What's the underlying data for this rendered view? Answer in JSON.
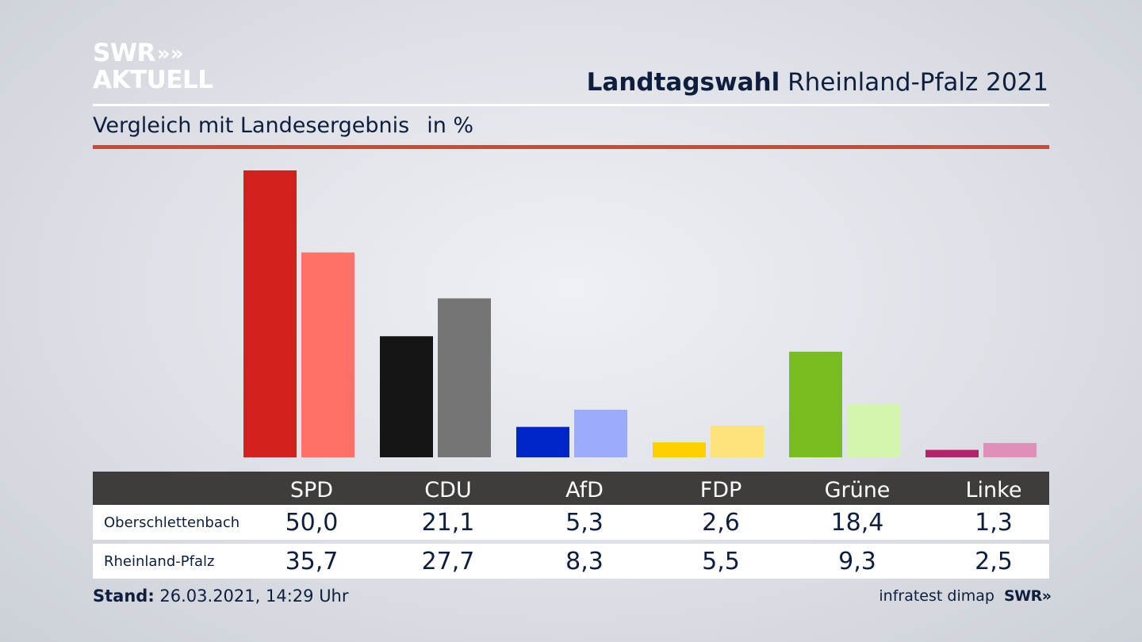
{
  "logo": {
    "line1": "SWR",
    "chevrons": "»",
    "line2": "AKTUELL"
  },
  "header": {
    "title_bold": "Landtagswahl",
    "title_rest": "Rheinland-Pfalz 2021"
  },
  "subtitle": {
    "text": "Vergleich mit Landesergebnis",
    "unit": "in %"
  },
  "footer": {
    "stand_label": "Stand:",
    "stand_value": "26.03.2021, 14:29 Uhr",
    "source": "infratest dimap",
    "source_logo": "SWR",
    "source_chevrons": "»"
  },
  "chart_data": {
    "type": "bar",
    "categories": [
      "SPD",
      "CDU",
      "AfD",
      "FDP",
      "Grüne",
      "Linke"
    ],
    "series": [
      {
        "name": "Oberschlettenbach",
        "values": [
          "50,0",
          "21,1",
          "5,3",
          "2,6",
          "18,4",
          "1,3"
        ],
        "numeric": [
          50.0,
          21.1,
          5.3,
          2.6,
          18.4,
          1.3
        ],
        "colors": [
          "#d41f1f",
          "#141414",
          "#0024c8",
          "#ffd000",
          "#78bc1e",
          "#b0246a"
        ]
      },
      {
        "name": "Rheinland-Pfalz",
        "values": [
          "35,7",
          "27,7",
          "8,3",
          "5,5",
          "9,3",
          "2,5"
        ],
        "numeric": [
          35.7,
          27.7,
          8.3,
          5.5,
          9.3,
          2.5
        ],
        "colors": [
          "#ff7167",
          "#767575",
          "#9dabfd",
          "#fee27a",
          "#d4f5ad",
          "#e08fbb"
        ]
      }
    ],
    "ylim": [
      0,
      50
    ],
    "grid": false,
    "legend": "table-below"
  }
}
